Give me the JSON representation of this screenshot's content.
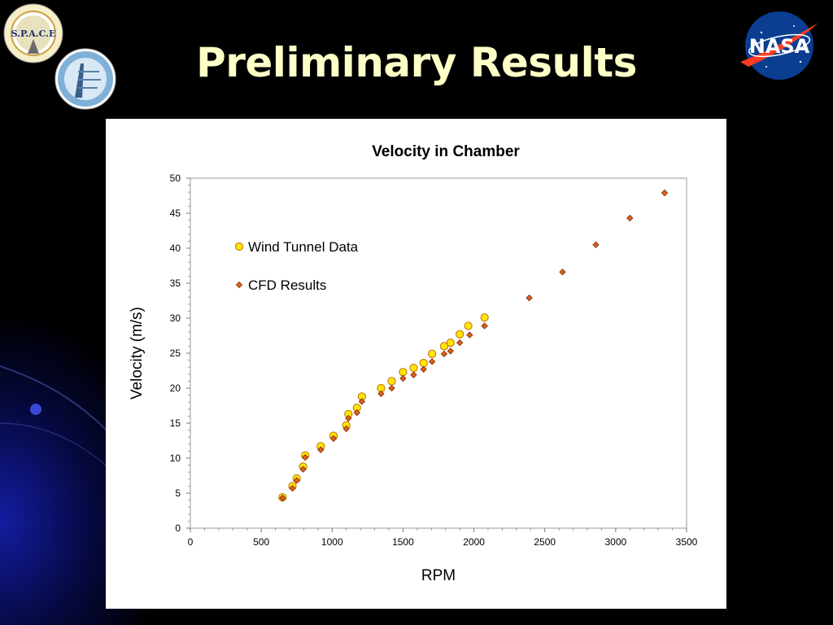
{
  "slide": {
    "title": "Preliminary Results",
    "space_logo_text": "S.P.A.C.E",
    "nasa_logo_text": "NASA"
  },
  "colors": {
    "title": "#ffffc8",
    "wind_fill": "#ffe600",
    "wind_stroke": "#c07000",
    "cfd_fill": "#e0601c",
    "cfd_stroke": "#7a2a08",
    "nasa_blue": "#0b3d91",
    "nasa_red": "#fc3d21"
  },
  "chart_data": {
    "type": "scatter",
    "title": "Velocity in Chamber",
    "xlabel": "RPM",
    "ylabel": "Velocity (m/s)",
    "xlim": [
      0,
      3500
    ],
    "ylim": [
      0,
      50
    ],
    "x_ticks": [
      0,
      500,
      1000,
      1500,
      2000,
      2500,
      3000,
      3500
    ],
    "y_ticks": [
      0,
      5,
      10,
      15,
      20,
      25,
      30,
      35,
      40,
      45,
      50
    ],
    "grid": false,
    "legend_position": "upper-left-inside",
    "series": [
      {
        "name": "Wind Tunnel Data",
        "marker": "circle",
        "points": [
          [
            650,
            4.4
          ],
          [
            720,
            6.0
          ],
          [
            750,
            7.1
          ],
          [
            795,
            8.8
          ],
          [
            810,
            10.4
          ],
          [
            920,
            11.7
          ],
          [
            1010,
            13.2
          ],
          [
            1100,
            14.7
          ],
          [
            1115,
            16.3
          ],
          [
            1175,
            17.2
          ],
          [
            1210,
            18.8
          ],
          [
            1345,
            20.0
          ],
          [
            1420,
            21.0
          ],
          [
            1500,
            22.3
          ],
          [
            1575,
            22.9
          ],
          [
            1645,
            23.6
          ],
          [
            1705,
            24.9
          ],
          [
            1790,
            26.0
          ],
          [
            1835,
            26.5
          ],
          [
            1900,
            27.7
          ],
          [
            1960,
            28.9
          ],
          [
            2075,
            30.1
          ]
        ]
      },
      {
        "name": "CFD Results",
        "marker": "diamond",
        "points": [
          [
            650,
            4.3
          ],
          [
            720,
            5.7
          ],
          [
            750,
            6.8
          ],
          [
            795,
            8.4
          ],
          [
            810,
            10.1
          ],
          [
            920,
            11.2
          ],
          [
            1010,
            12.8
          ],
          [
            1100,
            14.2
          ],
          [
            1115,
            15.7
          ],
          [
            1175,
            16.5
          ],
          [
            1210,
            18.1
          ],
          [
            1345,
            19.2
          ],
          [
            1420,
            20.0
          ],
          [
            1500,
            21.4
          ],
          [
            1575,
            21.9
          ],
          [
            1645,
            22.7
          ],
          [
            1705,
            23.8
          ],
          [
            1790,
            24.9
          ],
          [
            1835,
            25.3
          ],
          [
            1900,
            26.5
          ],
          [
            1970,
            27.6
          ],
          [
            2075,
            28.9
          ],
          [
            2390,
            32.9
          ],
          [
            2625,
            36.6
          ],
          [
            2860,
            40.5
          ],
          [
            3100,
            44.3
          ],
          [
            3345,
            47.9
          ]
        ]
      }
    ]
  }
}
